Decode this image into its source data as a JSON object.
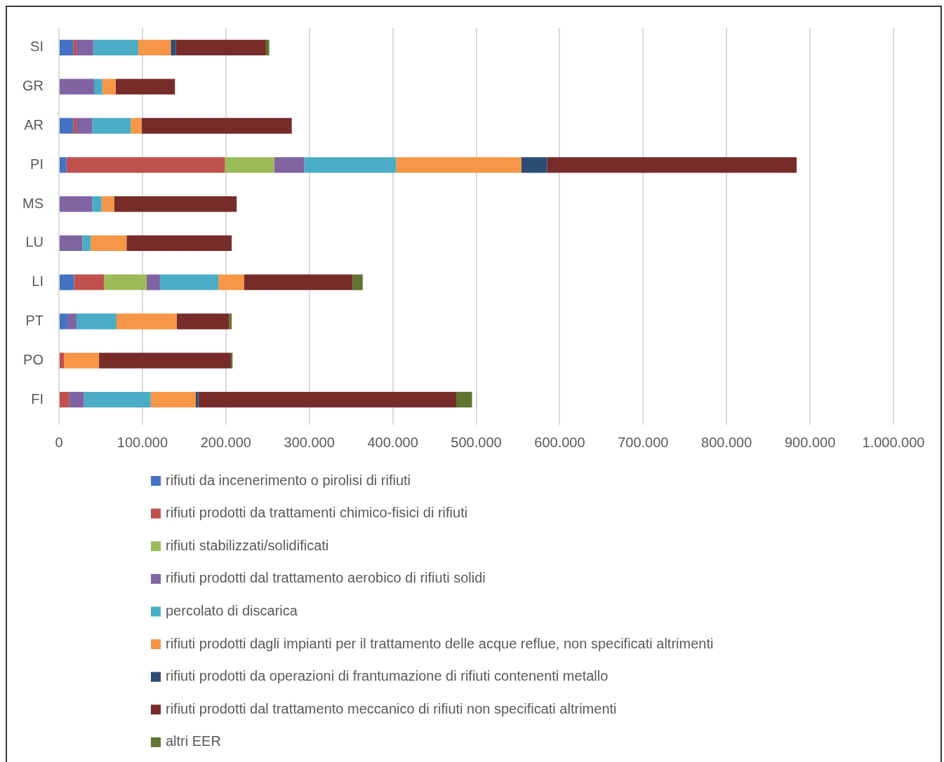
{
  "chart_data": {
    "type": "bar",
    "orientation": "horizontal",
    "stacked": true,
    "categories": [
      "SI",
      "GR",
      "AR",
      "PI",
      "MS",
      "LU",
      "LI",
      "PT",
      "PO",
      "FI"
    ],
    "series": [
      {
        "name": "rifiuti da incenerimento o pirolisi di rifiuti",
        "color": "#4472c4",
        "values": [
          17000,
          null,
          17000,
          9000,
          null,
          null,
          18000,
          10000,
          null,
          null
        ]
      },
      {
        "name": "rifiuti prodotti da trattamenti chimico-fisici di rifiuti",
        "color": "#c0504d",
        "values": [
          4000,
          null,
          4000,
          190000,
          null,
          null,
          36000,
          null,
          6000,
          12000
        ]
      },
      {
        "name": "rifiuti stabilizzati/solidificati",
        "color": "#9bbb59",
        "values": [
          null,
          null,
          null,
          59000,
          null,
          null,
          51000,
          null,
          null,
          null
        ]
      },
      {
        "name": "rifiuti prodotti dal trattamento aerobico di rifiuti solidi",
        "color": "#8064a2",
        "values": [
          20000,
          42000,
          19000,
          36000,
          40000,
          28000,
          16000,
          11000,
          null,
          18000
        ]
      },
      {
        "name": "percolato di discarica",
        "color": "#4bacc6",
        "values": [
          54000,
          10000,
          46000,
          110000,
          11000,
          10000,
          70000,
          48000,
          null,
          80000
        ]
      },
      {
        "name": "rifiuti prodotti dagli impianti per il trattamento delle acque reflue, non specificati altrimenti",
        "color": "#f79646",
        "values": [
          39000,
          16000,
          13000,
          150000,
          15000,
          43000,
          31000,
          72000,
          42000,
          54000
        ]
      },
      {
        "name": "rifiuti prodotti da operazioni di frantumazione di rifiuti contenenti metallo",
        "color": "#2c4d75",
        "values": [
          6000,
          null,
          null,
          31000,
          null,
          null,
          null,
          null,
          null,
          3000
        ]
      },
      {
        "name": "rifiuti prodotti dal trattamento meccanico di rifiuti non specificati altrimenti",
        "color": "#772c2a",
        "values": [
          108000,
          71000,
          180000,
          299000,
          147000,
          126000,
          130000,
          63000,
          158000,
          309000
        ]
      },
      {
        "name": "altri EER",
        "color": "#5f7530",
        "values": [
          4000,
          null,
          null,
          null,
          null,
          null,
          12000,
          3000,
          2000,
          19000
        ]
      }
    ],
    "xlim": [
      0,
      1000000
    ],
    "xticks": [
      0,
      {
        "value": 100000,
        "label": "100.000"
      },
      {
        "value": 200000,
        "label": "200.000"
      },
      {
        "value": 300000,
        "label": "300.000"
      },
      {
        "value": 400000,
        "label": "400.000"
      },
      {
        "value": 500000,
        "label": "500.000"
      },
      {
        "value": 600000,
        "label": "600.000"
      },
      {
        "value": 700000,
        "label": "700.000"
      },
      {
        "value": 800000,
        "label": "800.000"
      },
      {
        "value": 900000,
        "label": "900.000"
      },
      {
        "value": 1000000,
        "label": "1.000.000"
      }
    ],
    "grid": "x",
    "legend": "bottom"
  }
}
